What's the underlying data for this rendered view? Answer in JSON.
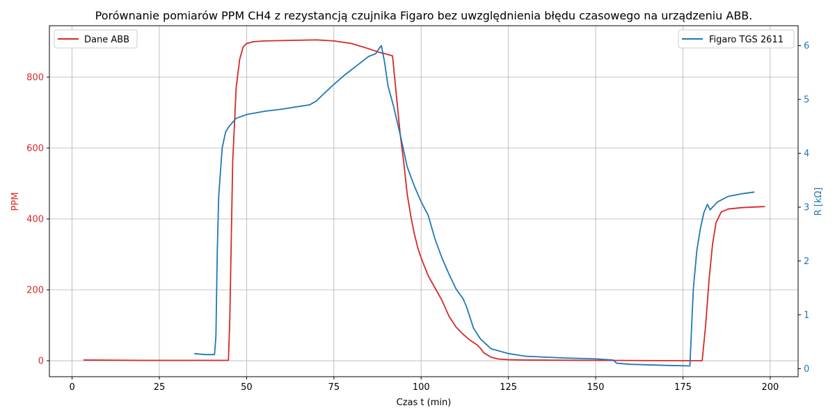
{
  "chart_data": {
    "type": "line",
    "title": "Porównanie pomiarów PPM CH4 z rezystancją czujnika Figaro bez uwzględnienia błędu czasowego na urządzeniu ABB.",
    "xlabel": "Czas t (min)",
    "ylabel_left": "PPM",
    "ylabel_right": "R [kΩ]",
    "xlim": [
      -6.5,
      208
    ],
    "ylim_left": [
      -45,
      945
    ],
    "ylim_right": [
      -0.15,
      6.37
    ],
    "x_ticks": [
      0,
      25,
      50,
      75,
      100,
      125,
      150,
      175,
      200
    ],
    "y_left_ticks": [
      0,
      200,
      400,
      600,
      800
    ],
    "y_right_ticks": [
      0,
      1,
      2,
      3,
      4,
      5,
      6
    ],
    "grid": true,
    "colors": {
      "left": "#d62728",
      "right": "#1f77b4"
    },
    "legend_left": {
      "placement": "upper-left"
    },
    "legend_right": {
      "placement": "upper-right"
    },
    "series": [
      {
        "name": "Dane ABB",
        "axis": "left",
        "color": "#d62728",
        "x": [
          3.2,
          20,
          44.8,
          45.2,
          46,
          47,
          48,
          49,
          50,
          52,
          55,
          60,
          65,
          70,
          75,
          80,
          85,
          88,
          90,
          91.8,
          92.5,
          93,
          94,
          95,
          96,
          97,
          98,
          99,
          100,
          102,
          104,
          106,
          108,
          110,
          112,
          114,
          116,
          117,
          118,
          120,
          122,
          125,
          130,
          150,
          175,
          180.5,
          181.5,
          182.5,
          183.5,
          184.5,
          186,
          188,
          192,
          198.5
        ],
        "y": [
          2,
          1,
          1,
          120,
          560,
          770,
          850,
          885,
          895,
          900,
          902,
          903,
          904,
          905,
          902,
          895,
          880,
          870,
          865,
          860,
          790,
          740,
          640,
          560,
          470,
          410,
          360,
          320,
          290,
          240,
          205,
          170,
          125,
          95,
          75,
          58,
          45,
          35,
          22,
          10,
          5,
          3,
          2,
          1,
          0,
          0,
          100,
          230,
          330,
          390,
          420,
          428,
          432,
          435
        ]
      },
      {
        "name": "Figaro TGS 2611",
        "axis": "right",
        "color": "#1f77b4",
        "x": [
          35,
          38,
          40.8,
          41.2,
          41.6,
          42,
          43,
          44,
          45,
          47,
          50,
          55,
          60,
          65,
          68,
          70,
          72,
          75,
          78,
          80,
          85,
          87,
          88,
          88.6,
          89.5,
          90.5,
          92,
          94,
          96,
          98,
          100,
          102,
          104,
          106,
          108,
          110,
          112,
          113,
          114,
          115,
          117,
          120,
          125,
          130,
          140,
          150,
          155,
          156,
          160,
          170,
          177,
          177.5,
          178,
          179,
          180,
          181,
          182,
          182.8,
          183.5,
          185,
          188,
          192,
          195.5
        ],
        "y": [
          0.28,
          0.26,
          0.26,
          0.6,
          2.2,
          3.2,
          4.1,
          4.4,
          4.5,
          4.65,
          4.72,
          4.78,
          4.82,
          4.87,
          4.9,
          4.97,
          5.1,
          5.28,
          5.45,
          5.55,
          5.8,
          5.85,
          5.95,
          6.0,
          5.7,
          5.25,
          4.9,
          4.35,
          3.75,
          3.4,
          3.1,
          2.85,
          2.4,
          2.05,
          1.75,
          1.48,
          1.3,
          1.15,
          0.95,
          0.75,
          0.55,
          0.37,
          0.28,
          0.23,
          0.2,
          0.18,
          0.16,
          0.1,
          0.08,
          0.06,
          0.05,
          0.8,
          1.5,
          2.2,
          2.6,
          2.9,
          3.05,
          2.95,
          3.0,
          3.1,
          3.2,
          3.25,
          3.28
        ]
      }
    ]
  }
}
